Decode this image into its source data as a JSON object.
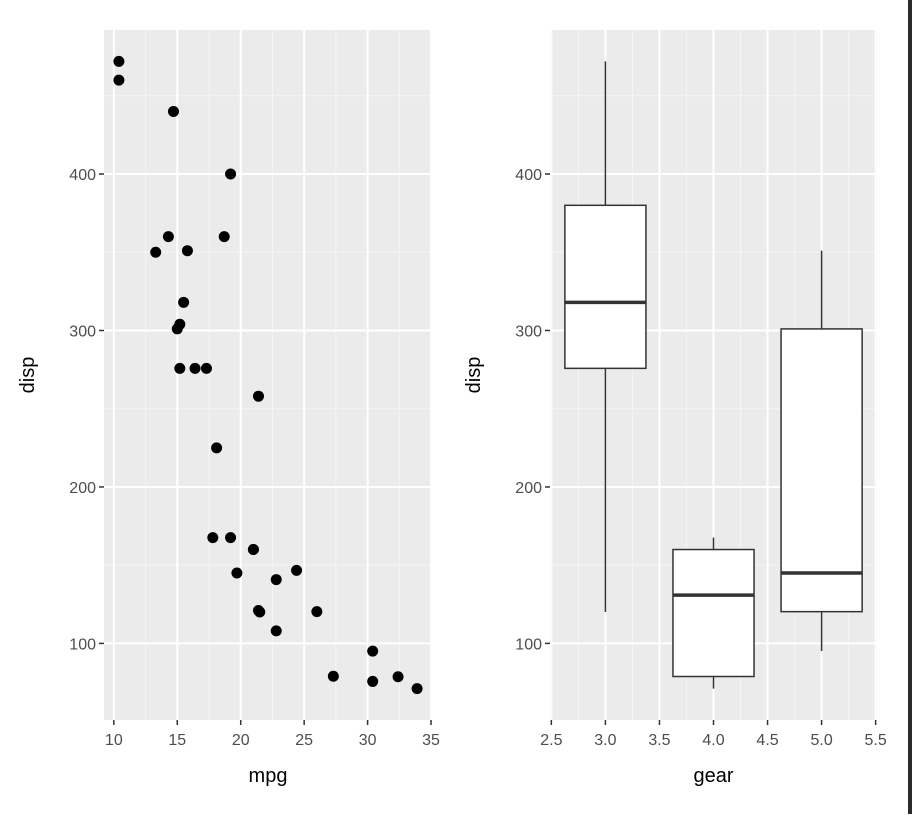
{
  "chart_data": [
    {
      "type": "scatter",
      "xlabel": "mpg",
      "ylabel": "disp",
      "xlim": [
        9.225,
        35.075
      ],
      "ylim": [
        51.05,
        492.05
      ],
      "xticks": [
        10,
        15,
        20,
        25,
        30,
        35
      ],
      "yticks": [
        100,
        200,
        300,
        400
      ],
      "grid": true,
      "point_color": "#000000",
      "panel_color": "#ebebeb",
      "points": [
        [
          21,
          160
        ],
        [
          21,
          160
        ],
        [
          22.8,
          108
        ],
        [
          21.4,
          258
        ],
        [
          18.7,
          360
        ],
        [
          18.1,
          225
        ],
        [
          14.3,
          360
        ],
        [
          24.4,
          146.7
        ],
        [
          22.8,
          140.8
        ],
        [
          19.2,
          167.6
        ],
        [
          17.8,
          167.6
        ],
        [
          16.4,
          275.8
        ],
        [
          17.3,
          275.8
        ],
        [
          15.2,
          275.8
        ],
        [
          10.4,
          472
        ],
        [
          10.4,
          460
        ],
        [
          14.7,
          440
        ],
        [
          32.4,
          78.7
        ],
        [
          30.4,
          75.7
        ],
        [
          33.9,
          71.1
        ],
        [
          21.5,
          120.1
        ],
        [
          15.5,
          318
        ],
        [
          15.2,
          304
        ],
        [
          13.3,
          350
        ],
        [
          19.2,
          400
        ],
        [
          27.3,
          79
        ],
        [
          26,
          120.3
        ],
        [
          30.4,
          95.1
        ],
        [
          15.8,
          351
        ],
        [
          19.7,
          145
        ],
        [
          15,
          301
        ],
        [
          21.4,
          121
        ]
      ]
    },
    {
      "type": "box",
      "xlabel": "gear",
      "ylabel": "disp",
      "xlim": [
        2.4875,
        5.5125
      ],
      "ylim": [
        51.05,
        492.05
      ],
      "xticks": [
        "2.5",
        "3.0",
        "3.5",
        "4.0",
        "4.5",
        "5.0",
        "5.5"
      ],
      "yticks": [
        100,
        200,
        300,
        400
      ],
      "grid": true,
      "boxes": [
        {
          "x": 3,
          "min": 120.1,
          "q1": 275.8,
          "median": 318,
          "q3": 380,
          "max": 472
        },
        {
          "x": 4,
          "min": 71.1,
          "q1": 78.85,
          "median": 130.9,
          "q3": 160,
          "max": 167.6
        },
        {
          "x": 5,
          "min": 95.1,
          "q1": 120.3,
          "median": 145,
          "q3": 301,
          "max": 351
        }
      ]
    }
  ]
}
